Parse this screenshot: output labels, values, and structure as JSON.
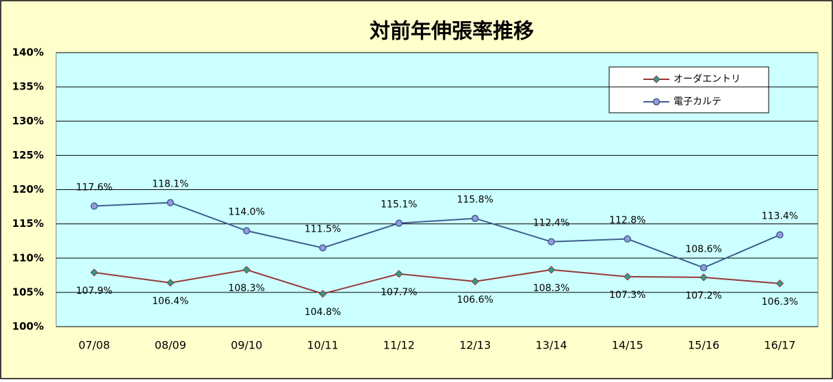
{
  "chart_data": {
    "type": "line",
    "title": "対前年伸張率推移",
    "categories": [
      "07/08",
      "08/09",
      "09/10",
      "10/11",
      "11/12",
      "12/13",
      "13/14",
      "14/15",
      "15/16",
      "16/17"
    ],
    "series": [
      {
        "name": "オーダエントリ",
        "color": "#953735",
        "values": [
          107.9,
          106.4,
          108.3,
          104.8,
          107.7,
          106.6,
          108.3,
          107.3,
          107.2,
          106.3
        ],
        "value_labels": [
          "107.9%",
          "106.4%",
          "108.3%",
          "104.8%",
          "107.7%",
          "106.6%",
          "108.3%",
          "107.3%",
          "107.2%",
          "106.3%"
        ]
      },
      {
        "name": "電子カルテ",
        "color": "#3b5e8c",
        "values": [
          117.6,
          118.1,
          114.0,
          111.5,
          115.1,
          115.8,
          112.4,
          112.8,
          108.6,
          113.4
        ],
        "value_labels": [
          "117.6%",
          "118.1%",
          "114.0%",
          "111.5%",
          "115.1%",
          "115.8%",
          "112.4%",
          "112.8%",
          "108.6%",
          "113.4%"
        ]
      }
    ],
    "ylim": [
      100,
      140
    ],
    "yticks": [
      {
        "value": 100,
        "label": "100%"
      },
      {
        "value": 105,
        "label": "105%"
      },
      {
        "value": 110,
        "label": "110%"
      },
      {
        "value": 115,
        "label": "115%"
      },
      {
        "value": 120,
        "label": "120%"
      },
      {
        "value": 125,
        "label": "125%"
      },
      {
        "value": 130,
        "label": "130%"
      },
      {
        "value": 135,
        "label": "135%"
      },
      {
        "value": 140,
        "label": "140%"
      }
    ],
    "grid": true,
    "legend": "upper right"
  }
}
